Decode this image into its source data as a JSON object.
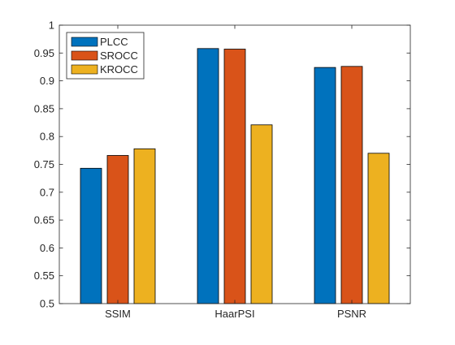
{
  "chart_data": {
    "type": "bar",
    "title": "",
    "xlabel": "",
    "ylabel": "",
    "categories": [
      "SSIM",
      "HaarPSI",
      "PSNR"
    ],
    "series": [
      {
        "name": "PLCC",
        "color": "#0072BD",
        "values": [
          0.743,
          0.958,
          0.924
        ]
      },
      {
        "name": "SROCC",
        "color": "#D95319",
        "values": [
          0.766,
          0.957,
          0.926
        ]
      },
      {
        "name": "KROCC",
        "color": "#EDB120",
        "values": [
          0.778,
          0.821,
          0.77
        ]
      }
    ],
    "ylim": [
      0.5,
      1
    ],
    "yticks": [
      "0.5",
      "0.55",
      "0.6",
      "0.65",
      "0.7",
      "0.75",
      "0.8",
      "0.85",
      "0.9",
      "0.95",
      "1"
    ],
    "grid": false,
    "legend": {
      "position": "top-left"
    }
  }
}
